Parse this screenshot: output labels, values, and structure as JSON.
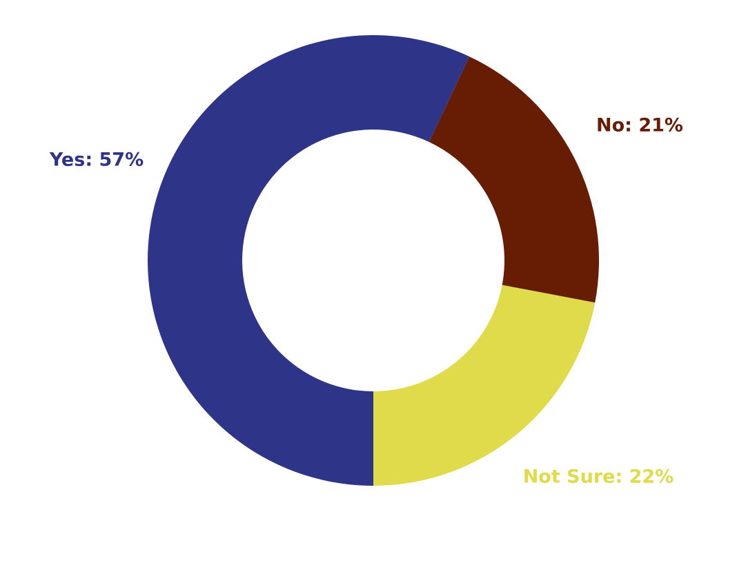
{
  "chart_data": {
    "type": "donut",
    "values": [
      57,
      21,
      22
    ],
    "value_labels": [
      "Yes: 57%",
      "No: 21%",
      "Not Sure: 22%"
    ],
    "colors": [
      "#2e3589",
      "#661d03",
      "#dfdb4a"
    ]
  }
}
